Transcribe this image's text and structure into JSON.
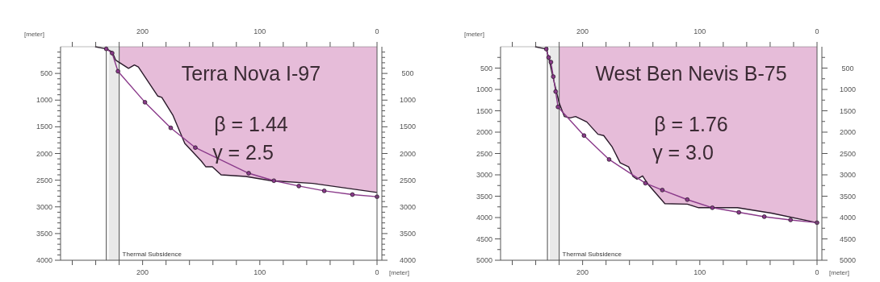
{
  "chart_data": [
    {
      "type": "line",
      "xlabel": "[meter]",
      "ylabel": "[meter]",
      "xlim": [
        270,
        0
      ],
      "ylim": [
        4000,
        0
      ],
      "y2lim": [
        4000,
        0
      ],
      "x2lim": [
        270,
        0
      ],
      "xticks": [
        {
          "value": 260,
          "label": null
        },
        {
          "value": 240,
          "label": null
        },
        {
          "value": 220,
          "label": null
        },
        200,
        {
          "value": 180,
          "label": null
        },
        {
          "value": 160,
          "label": null
        },
        {
          "value": 140,
          "label": null
        },
        {
          "value": 120,
          "label": null
        },
        100,
        {
          "value": 80,
          "label": null
        },
        {
          "value": 60,
          "label": null
        },
        {
          "value": 40,
          "label": null
        },
        {
          "value": 20,
          "label": null
        },
        0
      ],
      "x2ticks": [
        {
          "value": 260,
          "label": null
        },
        {
          "value": 240,
          "label": null
        },
        {
          "value": 220,
          "label": null
        },
        200,
        {
          "value": 180,
          "label": null
        },
        {
          "value": 160,
          "label": null
        },
        {
          "value": 140,
          "label": null
        },
        {
          "value": 120,
          "label": null
        },
        100,
        {
          "value": 80,
          "label": null
        },
        {
          "value": 60,
          "label": null
        },
        {
          "value": 40,
          "label": null
        },
        {
          "value": 20,
          "label": null
        },
        0
      ],
      "yticks": [
        {
          "value": 100,
          "label": null
        },
        {
          "value": 200,
          "label": null
        },
        {
          "value": 300,
          "label": null
        },
        {
          "value": 400,
          "label": null
        },
        500,
        {
          "value": 600,
          "label": null
        },
        {
          "value": 700,
          "label": null
        },
        {
          "value": 800,
          "label": null
        },
        {
          "value": 900,
          "label": null
        },
        1000,
        {
          "value": 1100,
          "label": null
        },
        {
          "value": 1200,
          "label": null
        },
        {
          "value": 1300,
          "label": null
        },
        {
          "value": 1400,
          "label": null
        },
        1500,
        {
          "value": 1600,
          "label": null
        },
        {
          "value": 1700,
          "label": null
        },
        {
          "value": 1800,
          "label": null
        },
        {
          "value": 1900,
          "label": null
        },
        2000,
        {
          "value": 2100,
          "label": null
        },
        {
          "value": 2200,
          "label": null
        },
        {
          "value": 2300,
          "label": null
        },
        {
          "value": 2400,
          "label": null
        },
        2500,
        {
          "value": 2600,
          "label": null
        },
        {
          "value": 2700,
          "label": null
        },
        {
          "value": 2800,
          "label": null
        },
        {
          "value": 2900,
          "label": null
        },
        3000,
        {
          "value": 3100,
          "label": null
        },
        {
          "value": 3200,
          "label": null
        },
        {
          "value": 3300,
          "label": null
        },
        {
          "value": 3400,
          "label": null
        },
        3500,
        {
          "value": 3600,
          "label": null
        },
        {
          "value": 3700,
          "label": null
        },
        {
          "value": 3800,
          "label": null
        },
        {
          "value": 3900,
          "label": null
        },
        4000
      ],
      "y2ticks": [
        {
          "value": 100,
          "label": null
        },
        {
          "value": 200,
          "label": null
        },
        {
          "value": 300,
          "label": null
        },
        {
          "value": 400,
          "label": null
        },
        500,
        {
          "value": 600,
          "label": null
        },
        {
          "value": 700,
          "label": null
        },
        {
          "value": 800,
          "label": null
        },
        {
          "value": 900,
          "label": null
        },
        1000,
        {
          "value": 1100,
          "label": null
        },
        {
          "value": 1200,
          "label": null
        },
        {
          "value": 1300,
          "label": null
        },
        {
          "value": 1400,
          "label": null
        },
        1500,
        {
          "value": 1600,
          "label": null
        },
        {
          "value": 1700,
          "label": null
        },
        {
          "value": 1800,
          "label": null
        },
        {
          "value": 1900,
          "label": null
        },
        2000,
        {
          "value": 2100,
          "label": null
        },
        {
          "value": 2200,
          "label": null
        },
        {
          "value": 2300,
          "label": null
        },
        {
          "value": 2400,
          "label": null
        },
        2500,
        {
          "value": 2600,
          "label": null
        },
        {
          "value": 2700,
          "label": null
        },
        {
          "value": 2800,
          "label": null
        },
        {
          "value": 2900,
          "label": null
        },
        3000,
        {
          "value": 3100,
          "label": null
        },
        {
          "value": 3200,
          "label": null
        },
        {
          "value": 3300,
          "label": null
        },
        {
          "value": 3400,
          "label": null
        },
        3500,
        {
          "value": 3600,
          "label": null
        },
        {
          "value": 3700,
          "label": null
        },
        {
          "value": 3800,
          "label": null
        },
        {
          "value": 3900,
          "label": null
        },
        4000
      ],
      "bands": [
        {
          "axis": "x",
          "from": 229,
          "to": 220,
          "label": "Thermal Subsidence",
          "color": "#e9e9e9"
        }
      ],
      "ref_lines": [
        {
          "axis": "x",
          "value": 231,
          "color": "#666666"
        },
        {
          "axis": "x",
          "value": 220,
          "color": "#666666"
        }
      ],
      "annotations": [
        "Terra Nova I-97",
        "β = 1.44",
        "γ = 2.5"
      ],
      "series": [
        {
          "type": "area",
          "color": "#e6bcd9",
          "x": [
            220,
            212,
            207,
            203.6,
            187,
            183.6,
            174,
            164,
            150,
            146,
            140.5,
            133,
            112,
            90.5,
            54.8,
            0
          ],
          "values": [
            290,
            405,
            343,
            380,
            925,
            950,
            1290,
            1810,
            2140,
            2250,
            2250,
            2400,
            2430,
            2510,
            2560,
            2730
          ]
        },
        {
          "type": "line",
          "color": "#2a1a2a",
          "marker": "none",
          "x": [
            240.5,
            231,
            226,
            223,
            212,
            207,
            203.6,
            187,
            183.6,
            174,
            164,
            150,
            146,
            140.5,
            133,
            112,
            90.5,
            54.8,
            0
          ],
          "values": [
            0,
            40,
            95,
            250,
            405,
            343,
            380,
            925,
            950,
            1290,
            1810,
            2140,
            2250,
            2250,
            2400,
            2430,
            2510,
            2560,
            2730
          ]
        },
        {
          "type": "line",
          "color": "#8a3a8a",
          "marker": "circle",
          "x": [
            231,
            226,
            221,
            198,
            176,
            155,
            109.5,
            88,
            66.7,
            45,
            21,
            0
          ],
          "values": [
            40,
            120,
            460,
            1040,
            1520,
            1890,
            2370,
            2510,
            2610,
            2700,
            2770,
            2810
          ]
        }
      ]
    },
    {
      "type": "line",
      "xlabel": "[meter]",
      "ylabel": "[meter]",
      "xlim": [
        270,
        0
      ],
      "ylim": [
        5000,
        0
      ],
      "y2lim": [
        5000,
        0
      ],
      "x2lim": [
        270,
        0
      ],
      "xticks": [
        {
          "value": 260,
          "label": null
        },
        {
          "value": 240,
          "label": null
        },
        {
          "value": 220,
          "label": null
        },
        200,
        {
          "value": 180,
          "label": null
        },
        {
          "value": 160,
          "label": null
        },
        {
          "value": 140,
          "label": null
        },
        {
          "value": 120,
          "label": null
        },
        100,
        {
          "value": 80,
          "label": null
        },
        {
          "value": 60,
          "label": null
        },
        {
          "value": 40,
          "label": null
        },
        {
          "value": 20,
          "label": null
        },
        0
      ],
      "x2ticks": [
        {
          "value": 260,
          "label": null
        },
        {
          "value": 240,
          "label": null
        },
        {
          "value": 220,
          "label": null
        },
        200,
        {
          "value": 180,
          "label": null
        },
        {
          "value": 160,
          "label": null
        },
        {
          "value": 140,
          "label": null
        },
        {
          "value": 120,
          "label": null
        },
        100,
        {
          "value": 80,
          "label": null
        },
        {
          "value": 60,
          "label": null
        },
        {
          "value": 40,
          "label": null
        },
        {
          "value": 20,
          "label": null
        },
        0
      ],
      "yticks": [
        {
          "value": 250,
          "label": null
        },
        500,
        {
          "value": 750,
          "label": null
        },
        1000,
        {
          "value": 1250,
          "label": null
        },
        1500,
        {
          "value": 1750,
          "label": null
        },
        2000,
        {
          "value": 2250,
          "label": null
        },
        2500,
        {
          "value": 2750,
          "label": null
        },
        3000,
        {
          "value": 3250,
          "label": null
        },
        3500,
        {
          "value": 3750,
          "label": null
        },
        4000,
        {
          "value": 4250,
          "label": null
        },
        4500,
        {
          "value": 4750,
          "label": null
        },
        5000
      ],
      "y2ticks": [
        {
          "value": 250,
          "label": null
        },
        500,
        {
          "value": 750,
          "label": null
        },
        1000,
        {
          "value": 1250,
          "label": null
        },
        1500,
        {
          "value": 1750,
          "label": null
        },
        2000,
        {
          "value": 2250,
          "label": null
        },
        2500,
        {
          "value": 2750,
          "label": null
        },
        3000,
        {
          "value": 3250,
          "label": null
        },
        3500,
        {
          "value": 3750,
          "label": null
        },
        4000,
        {
          "value": 4250,
          "label": null
        },
        4500,
        {
          "value": 4750,
          "label": null
        },
        5000
      ],
      "bands": [
        {
          "axis": "x",
          "from": 228,
          "to": 220,
          "label": "Thermal Subsidence",
          "color": "#e9e9e9"
        }
      ],
      "ref_lines": [
        {
          "axis": "x",
          "value": 230,
          "color": "#666666"
        },
        {
          "axis": "x",
          "value": 220,
          "color": "#666666"
        }
      ],
      "annotations": [
        "West Ben Nevis B-75",
        "β = 1.76",
        "γ = 3.0"
      ],
      "series": [
        {
          "type": "area",
          "color": "#e6bcd9",
          "x": [
            220,
            215.5,
            210.7,
            206,
            196.4,
            186.9,
            182,
            175,
            167.9,
            160.7,
            157,
            153.6,
            148.8,
            144,
            129.8,
            110.7,
            101,
            67.9,
            39,
            0
          ],
          "values": [
            1316,
            1635,
            1667,
            1635,
            1762,
            2049,
            2081,
            2336,
            2719,
            2814,
            3037,
            3100,
            3024,
            3228,
            3674,
            3687,
            3770,
            3770,
            3897,
            4120
          ]
        },
        {
          "type": "line",
          "color": "#2a1a2a",
          "marker": "none",
          "x": [
            240.5,
            231,
            228.6,
            225,
            220,
            215.5,
            210.7,
            206,
            196.4,
            186.9,
            182,
            175,
            167.9,
            160.7,
            157,
            153.6,
            148.8,
            144,
            129.8,
            110.7,
            101,
            67.9,
            39,
            0
          ],
          "values": [
            0,
            54,
            297,
            743,
            1316,
            1635,
            1667,
            1635,
            1762,
            2049,
            2081,
            2336,
            2719,
            2814,
            3037,
            3100,
            3024,
            3228,
            3674,
            3687,
            3770,
            3770,
            3897,
            4120
          ]
        },
        {
          "type": "line",
          "color": "#8a3a8a",
          "marker": "circle",
          "x": [
            231,
            229,
            227,
            225,
            223,
            221,
            198.8,
            177.4,
            146.4,
            132,
            110.7,
            89.3,
            66.7,
            45,
            22.6,
            0
          ],
          "values": [
            54,
            250,
            360,
            700,
            1050,
            1410,
            2080,
            2640,
            3196,
            3356,
            3580,
            3770,
            3878,
            3980,
            4056,
            4120
          ]
        }
      ]
    }
  ]
}
